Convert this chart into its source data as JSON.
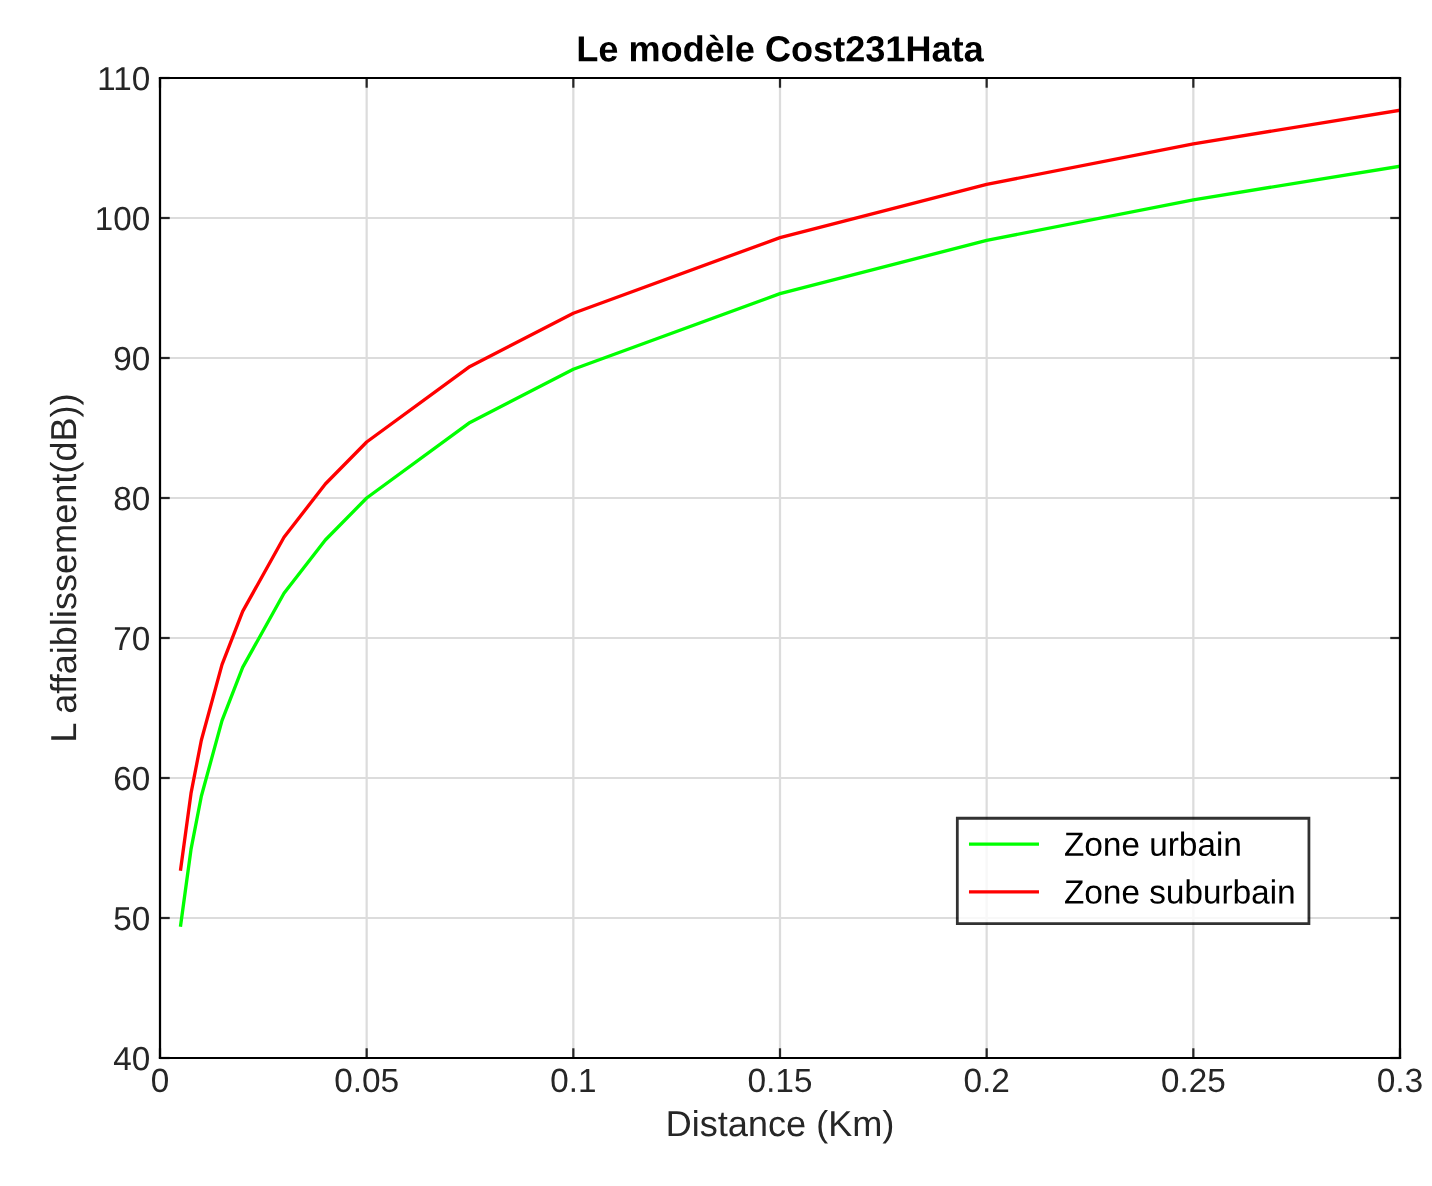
{
  "chart_data": {
    "type": "line",
    "title": "Le modèle Cost231Hata",
    "xlabel": "Distance (Km)",
    "ylabel": "L affaiblissement(dB))",
    "x": [
      0.005,
      0.0075,
      0.01,
      0.015,
      0.02,
      0.03,
      0.04,
      0.05,
      0.075,
      0.1,
      0.15,
      0.2,
      0.25,
      0.3
    ],
    "series": [
      {
        "name": "Zone urbain",
        "color": "#00ff00",
        "values": [
          49.5,
          54.9,
          58.7,
          64.1,
          67.9,
          73.2,
          77.0,
          80.0,
          85.4,
          89.2,
          94.6,
          98.4,
          101.3,
          103.7
        ]
      },
      {
        "name": "Zone suburbain",
        "color": "#ff0000",
        "values": [
          53.5,
          58.9,
          62.7,
          68.1,
          71.9,
          77.2,
          81.0,
          84.0,
          89.4,
          93.2,
          98.6,
          102.4,
          105.3,
          107.7
        ]
      }
    ],
    "xlim": [
      0,
      0.3
    ],
    "xticks": [
      0,
      0.05,
      0.1,
      0.15,
      0.2,
      0.25,
      0.3
    ],
    "ylim": [
      40,
      110
    ],
    "yticks": [
      40,
      50,
      60,
      70,
      80,
      90,
      100,
      110
    ],
    "grid": true,
    "legend": "bottom right",
    "marker": "none",
    "line_style": "solid"
  }
}
